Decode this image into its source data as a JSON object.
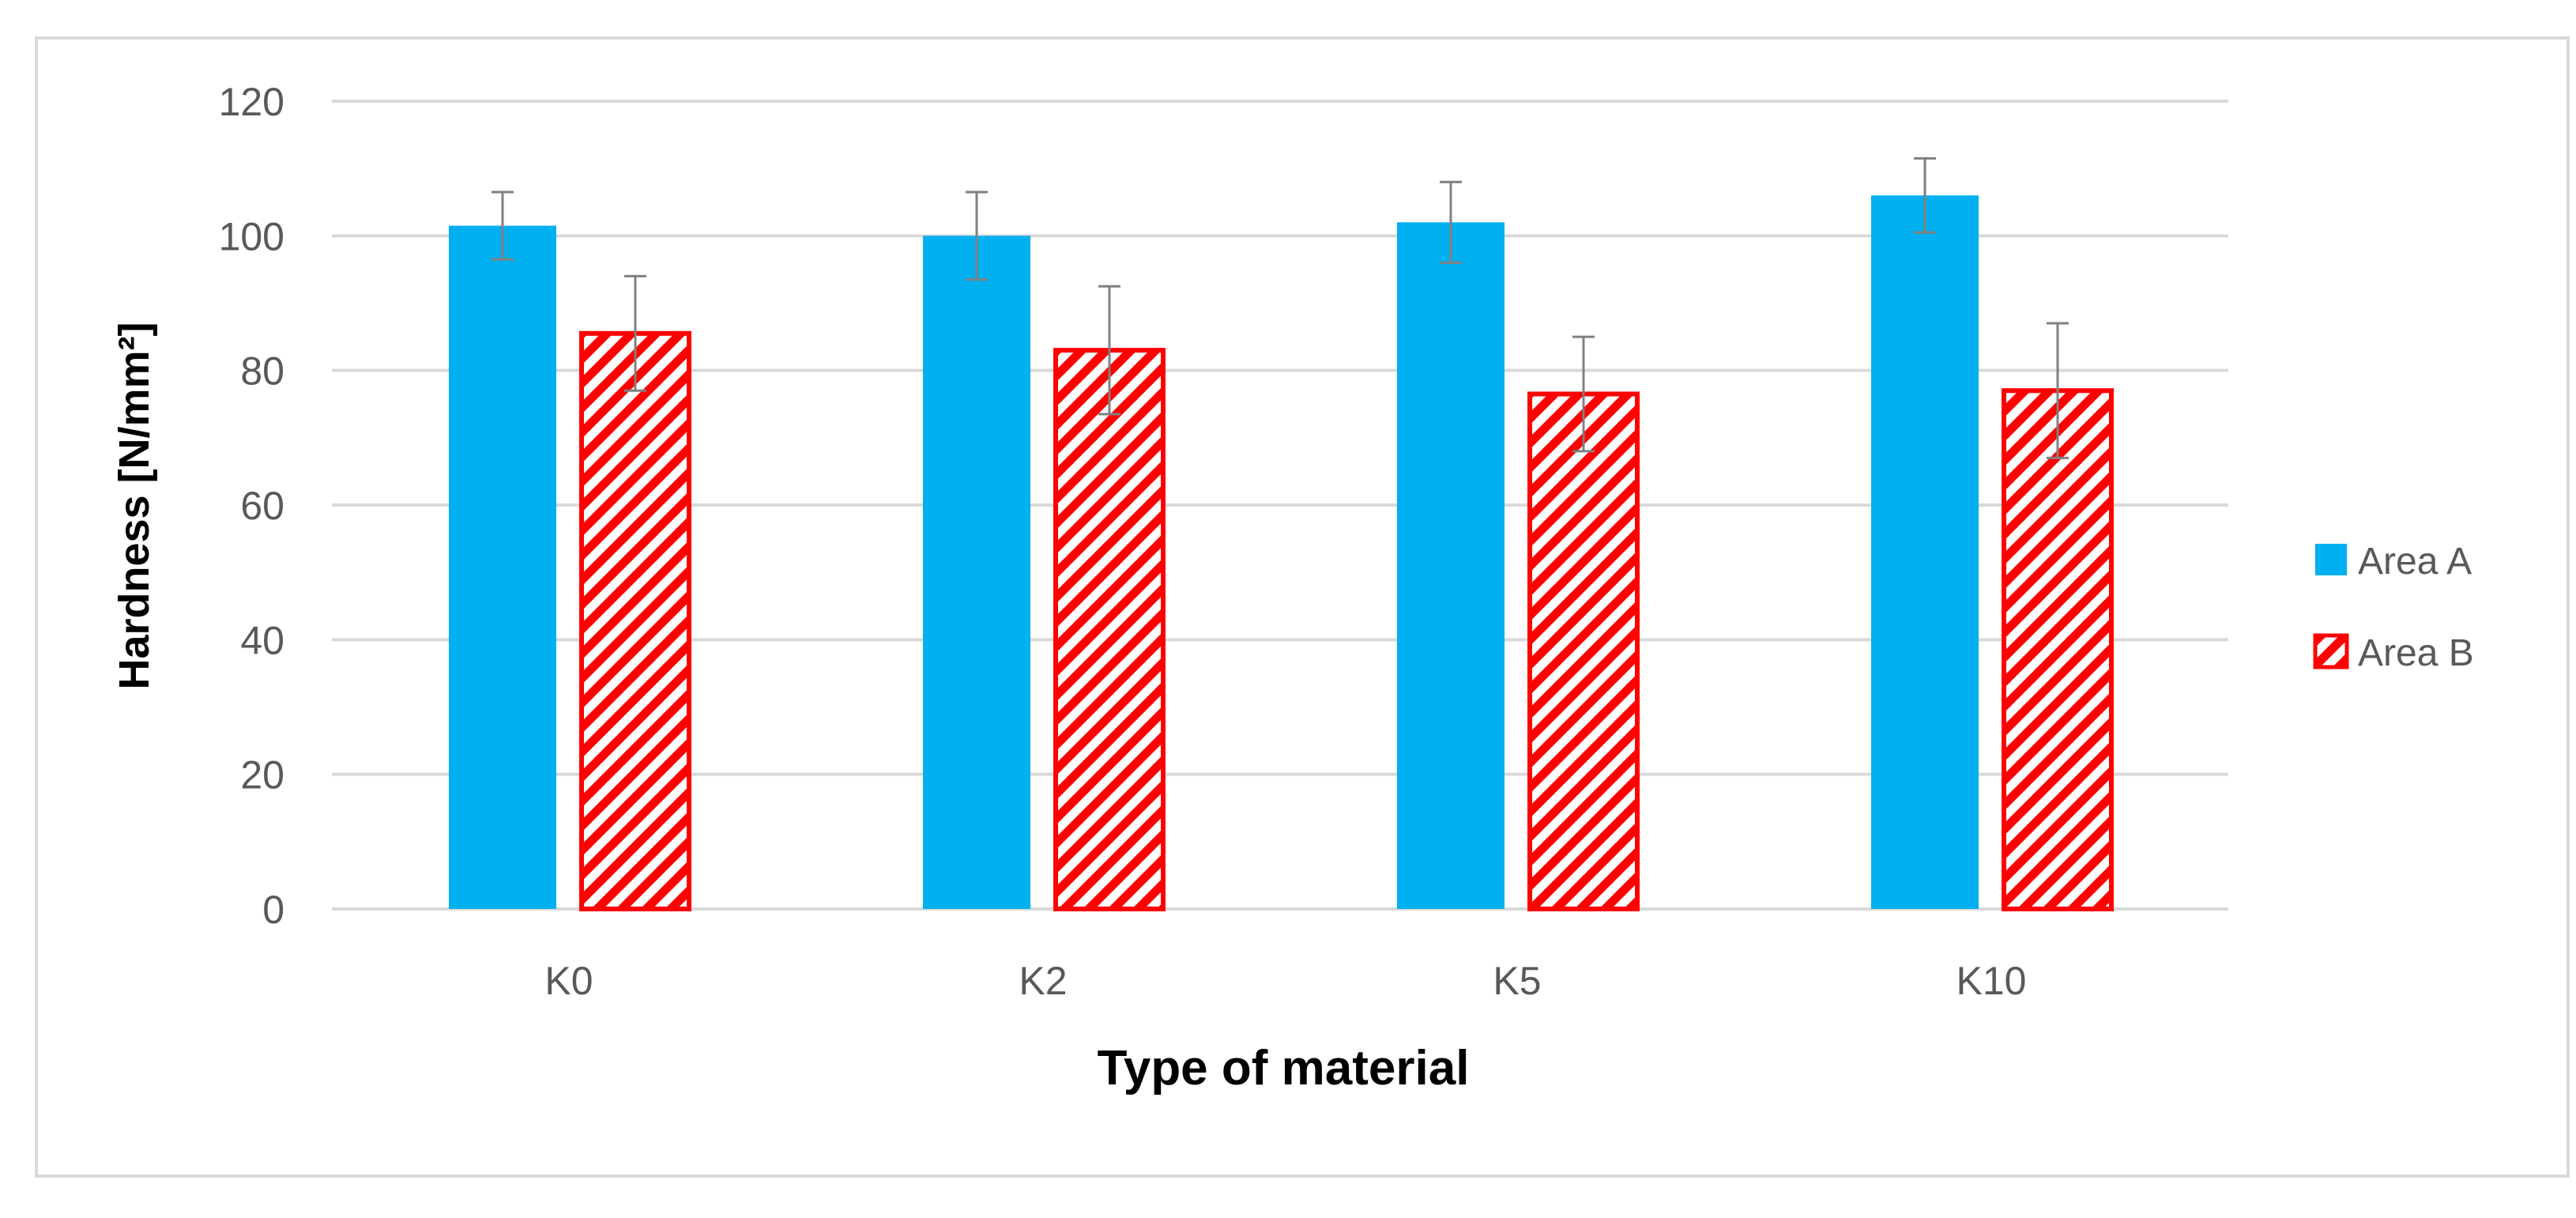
{
  "chart_data": {
    "type": "bar",
    "title": "",
    "xlabel": "Type of material",
    "ylabel": "Hardness [N/mm²]",
    "ylim": [
      0,
      120
    ],
    "yticks": [
      0,
      20,
      40,
      60,
      80,
      100,
      120
    ],
    "grid": true,
    "legend_position": "right",
    "categories": [
      "K0",
      "K2",
      "K5",
      "K10"
    ],
    "series": [
      {
        "name": "Area A",
        "color": "#00b0f0",
        "pattern": "solid",
        "values": [
          101.5,
          100.0,
          102.0,
          106.0
        ],
        "errors": [
          5.0,
          6.5,
          6.0,
          5.5
        ]
      },
      {
        "name": "Area B",
        "color": "#ff0000",
        "pattern": "diagonal-hatch",
        "values": [
          85.5,
          83.0,
          76.5,
          77.0
        ],
        "errors": [
          8.5,
          9.5,
          8.5,
          10.0
        ]
      }
    ]
  }
}
